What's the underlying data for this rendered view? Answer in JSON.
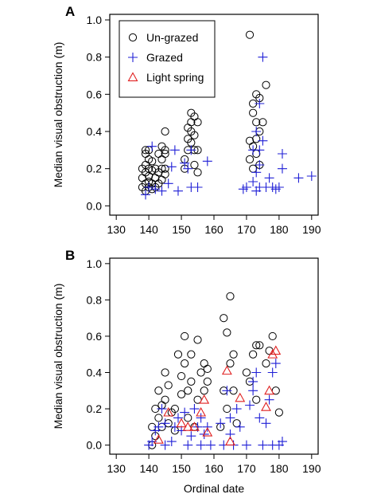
{
  "figure": {
    "xlabel": "Ordinal date",
    "ylabel": "Median visual obstruction (m)",
    "colors": {
      "ungrazed": "#000000",
      "grazed": "#1f1fd6",
      "light_spring": "#e02020"
    }
  },
  "chart_data": [
    {
      "type": "scatter",
      "panel_label": "A",
      "xlim": [
        128,
        192
      ],
      "ylim": [
        -0.05,
        1.03
      ],
      "x_ticks": [
        130,
        140,
        150,
        160,
        170,
        180,
        190
      ],
      "y_ticks": [
        0.0,
        0.2,
        0.4,
        0.6,
        0.8,
        1.0
      ],
      "x_tick_labels": [
        "130",
        "140",
        "150",
        "160",
        "170",
        "180",
        "190"
      ],
      "y_tick_labels": [
        "0.0",
        "0.2",
        "0.4",
        "0.6",
        "0.8",
        "1.0"
      ],
      "ylabel": "Median visual obstruction (m)",
      "xlabel": "",
      "grid": false,
      "legend": {
        "placement": "top-left",
        "entries": [
          "Un-grazed",
          "Grazed",
          "Light spring"
        ]
      },
      "series": [
        {
          "name": "Un-grazed",
          "marker": "circle",
          "color": "#000000",
          "x": [
            138,
            138,
            138,
            139,
            139,
            139,
            139,
            139,
            139,
            140,
            140,
            140,
            140,
            140,
            140,
            141,
            141,
            141,
            141,
            142,
            142,
            142,
            143,
            143,
            143,
            144,
            144,
            144,
            144,
            145,
            145,
            145,
            145,
            145,
            151,
            151,
            152,
            152,
            152,
            153,
            153,
            153,
            153,
            154,
            154,
            154,
            154,
            155,
            155,
            155,
            171,
            171,
            171,
            172,
            172,
            172,
            172,
            173,
            173,
            173,
            173,
            174,
            174,
            174,
            175,
            176
          ],
          "y": [
            0.1,
            0.15,
            0.2,
            0.08,
            0.12,
            0.18,
            0.22,
            0.28,
            0.3,
            0.1,
            0.13,
            0.16,
            0.2,
            0.25,
            0.3,
            0.09,
            0.12,
            0.19,
            0.24,
            0.1,
            0.15,
            0.2,
            0.12,
            0.18,
            0.28,
            0.14,
            0.2,
            0.25,
            0.32,
            0.17,
            0.2,
            0.28,
            0.3,
            0.4,
            0.2,
            0.25,
            0.3,
            0.36,
            0.42,
            0.34,
            0.4,
            0.45,
            0.5,
            0.22,
            0.3,
            0.38,
            0.48,
            0.18,
            0.3,
            0.45,
            0.25,
            0.35,
            0.92,
            0.2,
            0.32,
            0.5,
            0.55,
            0.28,
            0.36,
            0.45,
            0.6,
            0.22,
            0.4,
            0.58,
            0.45,
            0.65
          ]
        },
        {
          "name": "Grazed",
          "marker": "plus",
          "color": "#1f1fd6",
          "x": [
            139,
            140,
            141,
            142,
            144,
            146,
            147,
            148,
            149,
            151,
            152,
            153,
            153,
            155,
            158,
            169,
            170,
            172,
            172,
            173,
            173,
            173,
            174,
            174,
            174,
            174,
            175,
            175,
            176,
            177,
            178,
            179,
            180,
            181,
            181,
            186,
            190
          ],
          "y": [
            0.06,
            0.1,
            0.32,
            0.09,
            0.08,
            0.12,
            0.21,
            0.3,
            0.08,
            0.23,
            0.2,
            0.1,
            0.3,
            0.1,
            0.24,
            0.09,
            0.1,
            0.13,
            0.3,
            0.08,
            0.18,
            0.4,
            0.1,
            0.22,
            0.3,
            0.55,
            0.35,
            0.8,
            0.1,
            0.15,
            0.1,
            0.09,
            0.1,
            0.2,
            0.28,
            0.15,
            0.16
          ]
        },
        {
          "name": "Light spring",
          "marker": "triangle",
          "color": "#e02020",
          "x": [],
          "y": []
        }
      ]
    },
    {
      "type": "scatter",
      "panel_label": "B",
      "xlim": [
        128,
        192
      ],
      "ylim": [
        -0.05,
        1.03
      ],
      "x_ticks": [
        130,
        140,
        150,
        160,
        170,
        180,
        190
      ],
      "y_ticks": [
        0.0,
        0.2,
        0.4,
        0.6,
        0.8,
        1.0
      ],
      "x_tick_labels": [
        "130",
        "140",
        "150",
        "160",
        "170",
        "180",
        "190"
      ],
      "y_tick_labels": [
        "0.0",
        "0.2",
        "0.4",
        "0.6",
        "0.8",
        "1.0"
      ],
      "ylabel": "Median visual obstruction (m)",
      "xlabel": "Ordinal date",
      "grid": false,
      "series": [
        {
          "name": "Un-grazed",
          "marker": "circle",
          "color": "#000000",
          "x": [
            141,
            141,
            142,
            142,
            143,
            143,
            144,
            144,
            145,
            145,
            146,
            146,
            147,
            148,
            148,
            149,
            150,
            150,
            151,
            151,
            152,
            152,
            153,
            153,
            154,
            155,
            155,
            156,
            157,
            157,
            158,
            158,
            162,
            163,
            163,
            164,
            164,
            165,
            165,
            166,
            166,
            167,
            170,
            171,
            172,
            173,
            173,
            174,
            176,
            177,
            178,
            179,
            180
          ],
          "y": [
            0.0,
            0.1,
            0.2,
            0.05,
            0.15,
            0.3,
            0.1,
            0.22,
            0.25,
            0.4,
            0.12,
            0.33,
            0.18,
            0.08,
            0.2,
            0.5,
            0.28,
            0.38,
            0.6,
            0.45,
            0.15,
            0.3,
            0.35,
            0.5,
            0.1,
            0.25,
            0.58,
            0.4,
            0.3,
            0.45,
            0.35,
            0.42,
            0.1,
            0.3,
            0.7,
            0.2,
            0.62,
            0.45,
            0.82,
            0.3,
            0.5,
            0.12,
            0.4,
            0.35,
            0.5,
            0.25,
            0.55,
            0.55,
            0.45,
            0.52,
            0.6,
            0.3,
            0.18
          ]
        },
        {
          "name": "Grazed",
          "marker": "plus",
          "color": "#1f1fd6",
          "x": [
            140,
            141,
            142,
            143,
            144,
            145,
            145,
            147,
            148,
            149,
            150,
            151,
            152,
            153,
            154,
            155,
            156,
            156,
            157,
            158,
            159,
            162,
            163,
            164,
            165,
            165,
            166,
            167,
            168,
            170,
            171,
            172,
            172,
            173,
            174,
            175,
            176,
            177,
            178,
            178,
            179,
            180,
            181
          ],
          "y": [
            0.0,
            0.02,
            0.08,
            0.1,
            0.2,
            0.12,
            0.0,
            0.02,
            0.1,
            0.15,
            0.08,
            0.18,
            0.0,
            0.05,
            0.2,
            0.1,
            0.0,
            0.15,
            0.06,
            0.1,
            0.0,
            0.12,
            0.0,
            0.3,
            0.06,
            0.15,
            0.0,
            0.2,
            0.1,
            0.0,
            0.22,
            0.3,
            0.35,
            0.4,
            0.15,
            0.0,
            0.12,
            0.25,
            0.0,
            0.4,
            0.45,
            0.0,
            0.02
          ]
        },
        {
          "name": "Light spring",
          "marker": "triangle",
          "color": "#e02020",
          "x": [
            143,
            146,
            150,
            152,
            154,
            156,
            157,
            158,
            164,
            165,
            168,
            176,
            177,
            178,
            179
          ],
          "y": [
            0.03,
            0.18,
            0.12,
            0.1,
            0.1,
            0.18,
            0.25,
            0.07,
            0.41,
            0.02,
            0.26,
            0.21,
            0.3,
            0.5,
            0.52
          ]
        }
      ]
    }
  ]
}
